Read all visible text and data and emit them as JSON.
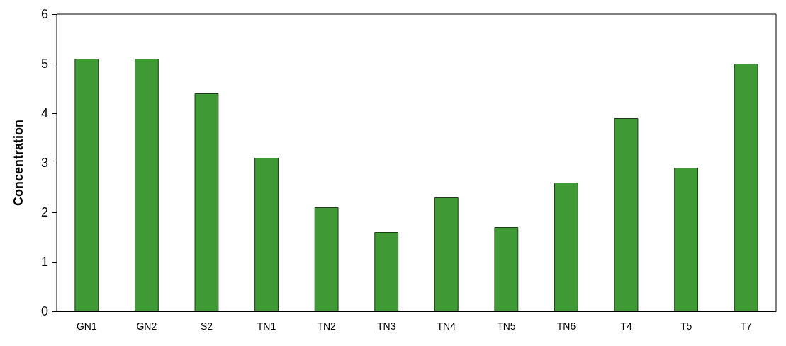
{
  "chart_data": {
    "type": "bar",
    "ylabel": "Concentration",
    "categories": [
      "GN1",
      "GN2",
      "S2",
      "TN1",
      "TN2",
      "TN3",
      "TN4",
      "TN5",
      "TN6",
      "T4",
      "T5",
      "T7"
    ],
    "values": [
      5.1,
      5.1,
      4.4,
      3.1,
      2.1,
      1.6,
      2.3,
      1.7,
      2.6,
      3.9,
      2.9,
      5.0
    ],
    "color": "#3f9a35",
    "ylim": [
      0,
      6
    ],
    "yticks": [
      0,
      1,
      2,
      3,
      4,
      5,
      6
    ],
    "grid": false
  }
}
